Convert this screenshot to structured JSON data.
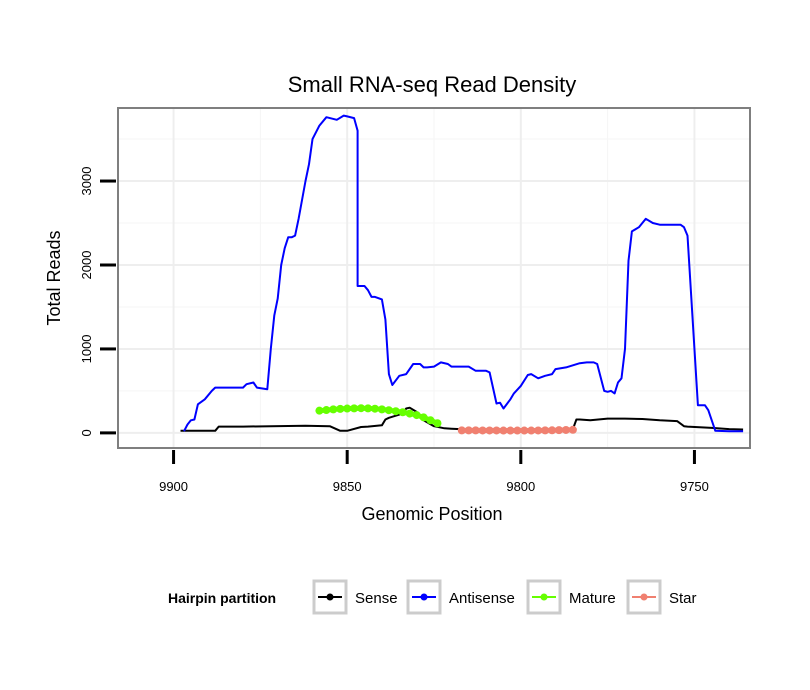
{
  "chart_data": {
    "type": "line",
    "title": "Small RNA-seq Read Density",
    "xlabel": "Genomic Position",
    "ylabel": "Total Reads",
    "xlim": [
      9916,
      9734
    ],
    "ylim": [
      -180,
      3870
    ],
    "x_ticks": [
      9900,
      9850,
      9800,
      9750
    ],
    "y_ticks": [
      0,
      1000,
      2000,
      3000
    ],
    "x_tick_labels": [
      "9900",
      "9850",
      "9800",
      "9750"
    ],
    "y_tick_labels": [
      "0",
      "1000",
      "2000",
      "3000"
    ],
    "legend": {
      "title": "Hairpin partition",
      "position": "bottom",
      "entries": [
        "Sense",
        "Antisense",
        "Mature",
        "Star"
      ]
    },
    "series": [
      {
        "name": "Sense",
        "color": "#000000",
        "style": "line",
        "x": [
          9898,
          9888,
          9887,
          9880,
          9872,
          9862,
          9855,
          9852,
          9850,
          9846,
          9844,
          9840,
          9839,
          9838,
          9834,
          9833,
          9832,
          9830,
          9828,
          9825,
          9822,
          9820,
          9815,
          9810,
          9800,
          9795,
          9790,
          9785,
          9784,
          9783,
          9780,
          9775,
          9770,
          9765,
          9760,
          9755,
          9753,
          9752,
          9745,
          9740,
          9736
        ],
        "values": [
          25,
          25,
          75,
          75,
          80,
          85,
          80,
          25,
          25,
          70,
          75,
          90,
          160,
          180,
          230,
          290,
          300,
          250,
          150,
          80,
          55,
          50,
          40,
          35,
          35,
          35,
          35,
          45,
          160,
          160,
          150,
          170,
          170,
          165,
          150,
          140,
          80,
          75,
          60,
          45,
          40
        ]
      },
      {
        "name": "Antisense",
        "color": "#0000ff",
        "style": "line",
        "x": [
          9897,
          9896,
          9895,
          9894,
          9893,
          9891,
          9889,
          9888,
          9884,
          9880,
          9879,
          9877,
          9876,
          9873,
          9872,
          9871,
          9870,
          9869,
          9868,
          9867,
          9866,
          9865,
          9864,
          9862,
          9861,
          9860,
          9858,
          9856,
          9853,
          9851,
          9850,
          9848,
          9847,
          9847,
          9845,
          9844,
          9843,
          9842,
          9840,
          9839,
          9838,
          9837,
          9835,
          9833,
          9831,
          9829,
          9828,
          9827,
          9825,
          9823,
          9821,
          9820,
          9818,
          9815,
          9813,
          9810,
          9809,
          9807,
          9806,
          9805,
          9803,
          9802,
          9800,
          9798,
          9797,
          9795,
          9793,
          9791,
          9790,
          9787,
          9783,
          9781,
          9779,
          9778,
          9776,
          9775,
          9774,
          9773,
          9772,
          9771,
          9770,
          9769,
          9768,
          9766,
          9764,
          9762,
          9760,
          9758,
          9754,
          9753,
          9752,
          9749,
          9747,
          9746,
          9744,
          9740,
          9736
        ],
        "values": [
          20,
          100,
          150,
          160,
          340,
          400,
          500,
          540,
          540,
          540,
          580,
          600,
          540,
          520,
          1000,
          1400,
          1600,
          2000,
          2200,
          2330,
          2330,
          2350,
          2550,
          3000,
          3200,
          3500,
          3660,
          3760,
          3730,
          3780,
          3770,
          3750,
          3600,
          1750,
          1750,
          1700,
          1620,
          1620,
          1590,
          1350,
          700,
          570,
          680,
          700,
          820,
          820,
          780,
          780,
          790,
          840,
          820,
          790,
          790,
          790,
          740,
          740,
          720,
          350,
          360,
          290,
          400,
          470,
          560,
          690,
          700,
          650,
          680,
          700,
          760,
          780,
          830,
          840,
          840,
          820,
          500,
          490,
          500,
          470,
          600,
          650,
          1000,
          2050,
          2400,
          2450,
          2550,
          2500,
          2480,
          2480,
          2480,
          2450,
          2350,
          330,
          330,
          270,
          25,
          20,
          20
        ]
      },
      {
        "name": "Mature",
        "color": "#66ff00",
        "style": "points",
        "x": [
          9858,
          9856,
          9854,
          9852,
          9850,
          9848,
          9846,
          9844,
          9842,
          9840,
          9838,
          9836,
          9834,
          9832,
          9830,
          9828,
          9826,
          9824
        ],
        "values": [
          265,
          272,
          280,
          286,
          290,
          292,
          294,
          292,
          288,
          280,
          270,
          258,
          246,
          230,
          212,
          185,
          150,
          115
        ]
      },
      {
        "name": "Star",
        "color": "#f08070",
        "style": "points",
        "x": [
          9817,
          9815,
          9813,
          9811,
          9809,
          9807,
          9805,
          9803,
          9801,
          9799,
          9797,
          9795,
          9793,
          9791,
          9789,
          9787,
          9785
        ],
        "values": [
          30,
          30,
          30,
          29,
          29,
          29,
          28,
          28,
          28,
          28,
          28,
          29,
          30,
          31,
          33,
          35,
          37
        ]
      }
    ]
  }
}
